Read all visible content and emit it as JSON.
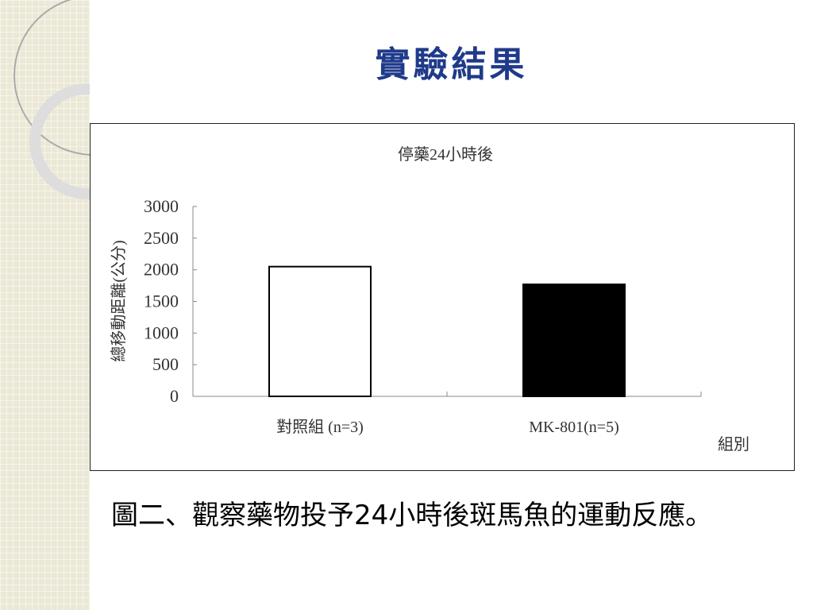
{
  "slide_title": "實驗結果",
  "caption": "圖二、觀察藥物投予24小時後斑馬魚的運動反應。",
  "chart_data": {
    "type": "bar",
    "title": "停藥24小時後",
    "xlabel": "組別",
    "ylabel": "總移動距離(公分)",
    "categories": [
      "對照組 (n=3)",
      "MK-801(n=5)"
    ],
    "values": [
      2050,
      1770
    ],
    "colors": [
      "#ffffff",
      "#000000"
    ],
    "ylim": [
      0,
      3000
    ],
    "yticks": [
      "0",
      "500",
      "1000",
      "1500",
      "2000",
      "2500",
      "3000"
    ],
    "grid": false
  }
}
